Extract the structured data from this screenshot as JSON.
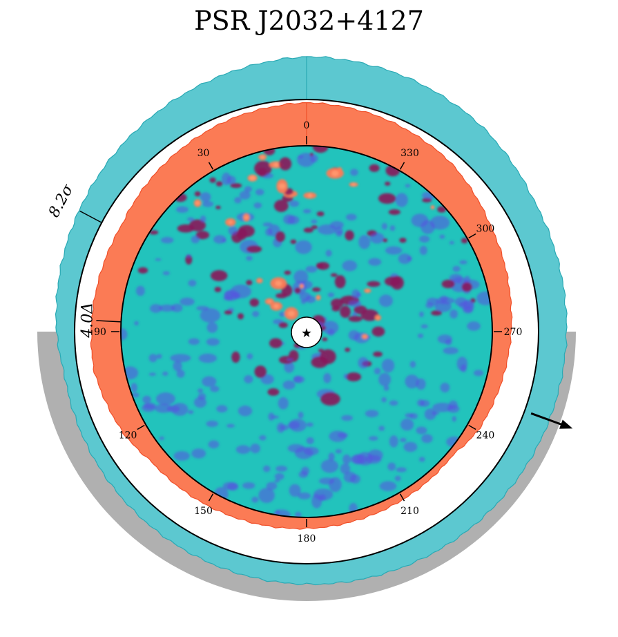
{
  "chart_data": {
    "type": "polar-image",
    "title": "PSR J2032+4127",
    "center_marker": "★",
    "angle_ticks": [
      {
        "angle": 0,
        "label": "0"
      },
      {
        "angle": 30,
        "label": "30"
      },
      {
        "angle": 90,
        "label": "90"
      },
      {
        "angle": 120,
        "label": "120"
      },
      {
        "angle": 150,
        "label": "150"
      },
      {
        "angle": 180,
        "label": "180"
      },
      {
        "angle": 210,
        "label": "210"
      },
      {
        "angle": 240,
        "label": "240"
      },
      {
        "angle": 270,
        "label": "270"
      },
      {
        "angle": 300,
        "label": "300"
      },
      {
        "angle": 330,
        "label": "330"
      }
    ],
    "outer_profile": {
      "scale_label": "8.2σ",
      "color": "#5cc8d0",
      "edge_color": "#2aa9b4",
      "angles": [
        0,
        20,
        40,
        60,
        80,
        90,
        100,
        300,
        320,
        340,
        360
      ],
      "values": [
        0.62,
        0.54,
        0.46,
        0.38,
        0.3,
        0.26,
        0.2,
        0.44,
        0.55,
        0.6,
        0.62
      ]
    },
    "inner_profile": {
      "scale_label": "4.0Δ",
      "color": "#fb7b55",
      "edge_color": "#f0502a",
      "angles": [
        0,
        20,
        40,
        60,
        80,
        100,
        120,
        130,
        230,
        240,
        260,
        280,
        300,
        320,
        340,
        360
      ],
      "values": [
        0.78,
        0.72,
        0.62,
        0.5,
        0.52,
        0.55,
        0.42,
        0.3,
        0.1,
        0.22,
        0.3,
        0.38,
        0.48,
        0.66,
        0.74,
        0.78
      ]
    },
    "shadow_band": {
      "color": "#b0b0b0",
      "from_angle": 90,
      "to_angle": 270
    },
    "direction_arrow": {
      "angle": 250
    },
    "colormap": {
      "background": "#22c3bc",
      "low": "#5a4fe0",
      "mid": "#8a1a5a",
      "high": "#ff7a55",
      "peak": "#ff9a70"
    }
  }
}
